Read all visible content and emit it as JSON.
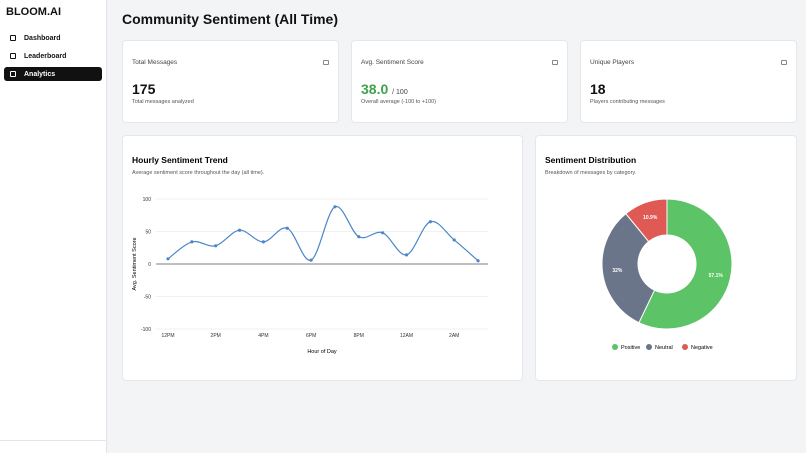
{
  "sidebar": {
    "brand": "BLOOM.AI",
    "nav": [
      {
        "label": "Dashboard",
        "active": false
      },
      {
        "label": "Leaderboard",
        "active": false
      },
      {
        "label": "Analytics",
        "active": true
      }
    ]
  },
  "header": {
    "title": "Community Sentiment (All Time)"
  },
  "stats": [
    {
      "label": "Total Messages",
      "value": "175",
      "note": "Total messages analyzed"
    },
    {
      "label": "Avg. Sentiment Score",
      "value": "38.0",
      "suffix": "/ 100",
      "note": "Overall average (-100 to +100)"
    },
    {
      "label": "Unique Players",
      "value": "18",
      "note": "Players contributing messages"
    }
  ],
  "chart_data": [
    {
      "type": "line",
      "title": "Hourly Sentiment Trend",
      "subtitle": "Average sentiment score throughout the day (all time).",
      "x_label": "Hour of Day",
      "y_label": "Avg. Sentiment Score",
      "categories": [
        "12PM",
        null,
        "2PM",
        null,
        "4PM",
        null,
        "6PM",
        null,
        "8PM",
        null,
        "12AM",
        null,
        "2AM",
        null
      ],
      "values": [
        8,
        34,
        28,
        52,
        34,
        55,
        6,
        88,
        42,
        48,
        14,
        65,
        37,
        5
      ],
      "color": "#4a86c8",
      "ylim": [
        -100,
        100
      ],
      "yticks": [
        -100,
        -50,
        0,
        50,
        100
      ],
      "grid": true
    },
    {
      "type": "pie",
      "title": "Sentiment Distribution",
      "subtitle": "Breakdown of messages by category.",
      "categories": [
        "Positive",
        "Neutral",
        "Negative"
      ],
      "values": [
        57.1,
        32,
        10.9
      ],
      "value_labels": [
        "57.1%",
        "32%",
        "10.9%"
      ],
      "colors": [
        "#5cc466",
        "#6b7589",
        "#e05a55"
      ],
      "legend": "bottom"
    }
  ]
}
